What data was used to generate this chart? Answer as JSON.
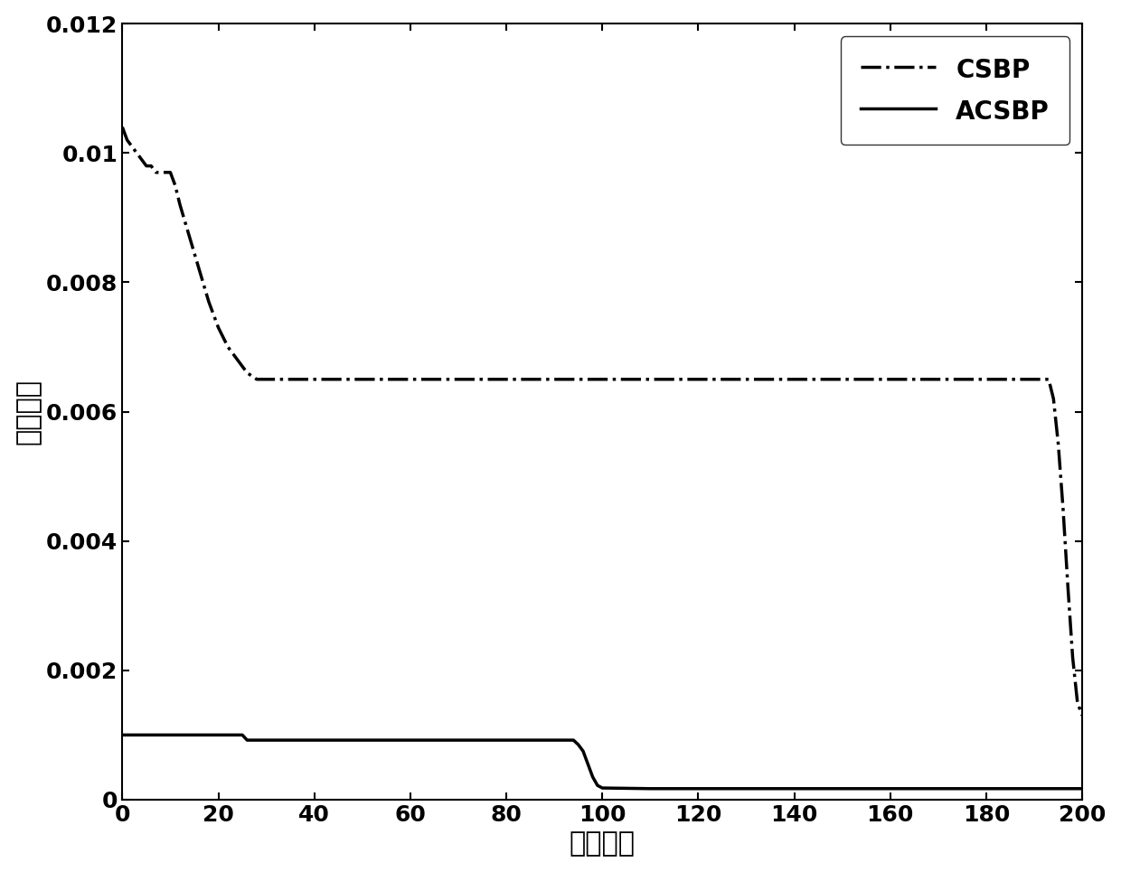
{
  "csbp_x": [
    0,
    1,
    2,
    3,
    4,
    5,
    6,
    7,
    8,
    9,
    10,
    11,
    12,
    14,
    16,
    18,
    20,
    22,
    24,
    26,
    28,
    30,
    60,
    90,
    120,
    150,
    180,
    190,
    192,
    193,
    194,
    195,
    196,
    197,
    198,
    199,
    200
  ],
  "csbp_y": [
    0.0104,
    0.0102,
    0.0101,
    0.01,
    0.0099,
    0.0098,
    0.0098,
    0.0097,
    0.0097,
    0.0097,
    0.0097,
    0.0095,
    0.0092,
    0.0087,
    0.0082,
    0.0077,
    0.0073,
    0.007,
    0.0068,
    0.0066,
    0.0065,
    0.0065,
    0.0065,
    0.0065,
    0.0065,
    0.0065,
    0.0065,
    0.0065,
    0.0065,
    0.0065,
    0.0062,
    0.0055,
    0.0045,
    0.0033,
    0.0022,
    0.0015,
    0.0013
  ],
  "acsbp_x": [
    0,
    1,
    5,
    10,
    15,
    20,
    25,
    26,
    30,
    40,
    50,
    60,
    70,
    80,
    85,
    90,
    94,
    95,
    96,
    97,
    98,
    99,
    100,
    110,
    120,
    150,
    180,
    200
  ],
  "acsbp_y": [
    0.001,
    0.001,
    0.001,
    0.001,
    0.001,
    0.001,
    0.001,
    0.00092,
    0.00092,
    0.00092,
    0.00092,
    0.00092,
    0.00092,
    0.00092,
    0.00092,
    0.00092,
    0.00092,
    0.00085,
    0.00075,
    0.00055,
    0.00035,
    0.00022,
    0.00018,
    0.00017,
    0.00017,
    0.00017,
    0.00017,
    0.00017
  ],
  "xlabel": "迭代次数",
  "ylabel": "训练误差",
  "xlim": [
    0,
    200
  ],
  "ylim": [
    0,
    0.012
  ],
  "xticks": [
    0,
    20,
    40,
    60,
    80,
    100,
    120,
    140,
    160,
    180,
    200
  ],
  "yticks": [
    0,
    0.002,
    0.004,
    0.006,
    0.008,
    0.01,
    0.012
  ],
  "legend_csbp": "CSBP",
  "legend_acsbp": "ACSBP",
  "line_color": "#000000",
  "bg_color": "#ffffff",
  "xlabel_fontsize": 22,
  "ylabel_fontsize": 22,
  "tick_fontsize": 18,
  "legend_fontsize": 20
}
